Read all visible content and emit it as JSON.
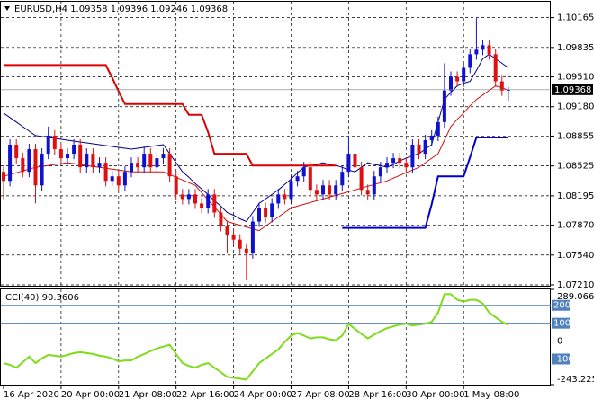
{
  "chart_data": [
    {
      "type": "candlestick",
      "title": "EURUSD,H4  1.09358 1.09396 1.09246 1.09368",
      "categories": [
        "16 Apr 2020",
        null,
        null,
        null,
        null,
        null,
        null,
        null,
        null,
        "20 Apr 00:00",
        null,
        null,
        null,
        null,
        null,
        null,
        null,
        null,
        "21 Apr 08:00",
        null,
        null,
        null,
        null,
        null,
        null,
        null,
        null,
        "22 Apr 16:00",
        null,
        null,
        null,
        null,
        null,
        null,
        null,
        null,
        "24 Apr 00:00",
        null,
        null,
        null,
        null,
        null,
        null,
        null,
        null,
        "27 Apr 08:00",
        null,
        null,
        null,
        null,
        null,
        null,
        null,
        null,
        "28 Apr 16:00",
        null,
        null,
        null,
        null,
        null,
        null,
        null,
        null,
        "30 Apr 00:00",
        null,
        null,
        null,
        null,
        null,
        null,
        null,
        null,
        "1 May 08:00",
        null,
        null,
        null,
        null,
        null,
        null,
        null
      ],
      "open": [
        1.0846,
        1.0836,
        1.0876,
        1.0861,
        1.0846,
        1.0871,
        1.0831,
        1.0866,
        1.0886,
        1.0871,
        1.0861,
        1.0866,
        1.0876,
        1.0851,
        1.0866,
        1.0851,
        1.0856,
        1.0836,
        1.0841,
        1.0831,
        1.0846,
        1.0856,
        1.0851,
        1.0866,
        1.0851,
        1.0861,
        1.0866,
        1.0841,
        1.0821,
        1.0816,
        1.0821,
        1.0811,
        1.0806,
        1.0821,
        1.0801,
        1.0786,
        1.0776,
        1.0771,
        1.0761,
        1.0756,
        1.0791,
        1.0806,
        1.0796,
        1.0811,
        1.0821,
        1.0816,
        1.0836,
        1.0841,
        1.0851,
        1.0826,
        1.0821,
        1.0831,
        1.0821,
        1.0831,
        1.0846,
        1.0866,
        1.0851,
        1.0826,
        1.0821,
        1.0841,
        1.0851,
        1.0856,
        1.0861,
        1.0856,
        1.0851,
        1.0876,
        1.0866,
        1.0881,
        1.0886,
        1.0901,
        1.0936,
        1.0951,
        1.0946,
        1.0961,
        1.0976,
        1.0981,
        1.0986,
        1.0976,
        1.0946,
        1.09358
      ],
      "high": [
        1.0852,
        1.0882,
        1.0882,
        1.0867,
        1.0877,
        1.0877,
        1.0872,
        1.0896,
        1.0892,
        1.0877,
        1.0872,
        1.0882,
        1.0882,
        1.0872,
        1.0872,
        1.0862,
        1.0862,
        1.0847,
        1.0847,
        1.0852,
        1.0862,
        1.0862,
        1.0874,
        1.0872,
        1.0867,
        1.0872,
        1.0872,
        1.0847,
        1.0827,
        1.0827,
        1.0827,
        1.0817,
        1.0827,
        1.0827,
        1.0807,
        1.0792,
        1.0782,
        1.0777,
        1.0767,
        1.0797,
        1.0812,
        1.0812,
        1.0817,
        1.0827,
        1.0827,
        1.0842,
        1.0847,
        1.0857,
        1.0857,
        1.0832,
        1.0837,
        1.0837,
        1.0837,
        1.0852,
        1.0886,
        1.0872,
        1.0857,
        1.0832,
        1.0847,
        1.0857,
        1.0862,
        1.0867,
        1.0867,
        1.0862,
        1.0882,
        1.0882,
        1.0887,
        1.0892,
        1.0907,
        1.0966,
        1.0957,
        1.0957,
        1.0967,
        1.0982,
        1.1016,
        1.0992,
        1.0992,
        1.0982,
        1.0952,
        1.09396
      ],
      "low": [
        1.0816,
        1.083,
        1.0855,
        1.084,
        1.084,
        1.0811,
        1.0825,
        1.086,
        1.0865,
        1.0855,
        1.0855,
        1.086,
        1.0845,
        1.0845,
        1.0845,
        1.0845,
        1.083,
        1.083,
        1.0825,
        1.0825,
        1.084,
        1.0845,
        1.0845,
        1.0845,
        1.0845,
        1.0855,
        1.0835,
        1.0815,
        1.081,
        1.081,
        1.0805,
        1.08,
        1.08,
        1.0795,
        1.078,
        1.0756,
        1.0765,
        1.0755,
        1.0726,
        1.075,
        1.0785,
        1.079,
        1.079,
        1.0805,
        1.081,
        1.081,
        1.083,
        1.0835,
        1.082,
        1.0815,
        1.0815,
        1.0815,
        1.0815,
        1.0825,
        1.084,
        1.0845,
        1.082,
        1.0815,
        1.0815,
        1.0835,
        1.0845,
        1.085,
        1.085,
        1.0845,
        1.0845,
        1.086,
        1.086,
        1.0875,
        1.088,
        1.0895,
        1.093,
        1.094,
        1.094,
        1.0955,
        1.097,
        1.0975,
        1.097,
        1.094,
        1.093,
        1.09246
      ],
      "close": [
        1.0836,
        1.0876,
        1.0861,
        1.0846,
        1.0871,
        1.0831,
        1.0866,
        1.0886,
        1.0871,
        1.0861,
        1.0866,
        1.0876,
        1.0851,
        1.0866,
        1.0851,
        1.0856,
        1.0836,
        1.0841,
        1.0831,
        1.0846,
        1.0856,
        1.0851,
        1.0866,
        1.0851,
        1.0861,
        1.0866,
        1.0841,
        1.0821,
        1.0816,
        1.0821,
        1.0811,
        1.0806,
        1.0821,
        1.0801,
        1.0786,
        1.0776,
        1.0771,
        1.0761,
        1.0756,
        1.0791,
        1.0806,
        1.0796,
        1.0811,
        1.0821,
        1.0816,
        1.0836,
        1.0841,
        1.0851,
        1.0826,
        1.0821,
        1.0831,
        1.0821,
        1.0831,
        1.0846,
        1.0866,
        1.0851,
        1.0826,
        1.0821,
        1.0841,
        1.0851,
        1.0856,
        1.0861,
        1.0856,
        1.0851,
        1.0876,
        1.0866,
        1.0881,
        1.0886,
        1.0901,
        1.0936,
        1.0951,
        1.0946,
        1.0961,
        1.0976,
        1.0981,
        1.0986,
        1.0976,
        1.0946,
        1.09358,
        1.09368
      ],
      "up_color": "#1010d0",
      "down_color": "#e01010",
      "lines": [
        {
          "color": "#000080",
          "width": 1,
          "values": [
            1.0911,
            1.0906,
            1.0901,
            1.0896,
            1.0891,
            1.0886,
            1.0885,
            1.0884,
            1.0883,
            1.0882,
            1.0881,
            1.088,
            1.0879,
            1.0878,
            1.0877,
            1.0876,
            1.0875,
            1.0874,
            1.0873,
            1.0872,
            1.0871,
            1.0872,
            1.0873,
            1.0874,
            1.0875,
            1.0876,
            1.0866,
            1.0856,
            1.0846,
            1.084,
            1.0833,
            1.0827,
            1.0821,
            1.0814,
            1.0808,
            1.0801,
            1.0798,
            1.0794,
            1.0791,
            1.0801,
            1.0811,
            1.0816,
            1.0821,
            1.0826,
            1.0832,
            1.0838,
            1.0845,
            1.0851,
            1.0853,
            1.0854,
            1.0856,
            1.0854,
            1.0853,
            1.0851,
            1.0848,
            1.0846,
            1.0851,
            1.0856,
            1.0854,
            1.0853,
            1.0851,
            1.0854,
            1.0858,
            1.0861,
            1.0864,
            1.0866,
            1.0871,
            1.0876,
            1.0901,
            1.0926,
            1.0934,
            1.0941,
            1.0944,
            1.0946,
            1.0958,
            1.0971,
            1.0976,
            1.0971,
            1.0966,
            1.0961
          ]
        },
        {
          "color": "#d01010",
          "width": 1,
          "values": [
            1.0841,
            1.0843,
            1.0845,
            1.0847,
            1.0849,
            1.0851,
            1.0852,
            1.0853,
            1.0854,
            1.0855,
            1.0856,
            1.0855,
            1.0854,
            1.0853,
            1.0852,
            1.0851,
            1.085,
            1.0849,
            1.0848,
            1.0847,
            1.0846,
            1.0846,
            1.0846,
            1.0846,
            1.0846,
            1.0846,
            1.0843,
            1.084,
            1.0837,
            1.0834,
            1.0831,
            1.0823,
            1.0815,
            1.0807,
            1.0799,
            1.0791,
            1.0789,
            1.0787,
            1.0785,
            1.0783,
            1.0781,
            1.0786,
            1.0791,
            1.0796,
            1.0801,
            1.0806,
            1.0808,
            1.081,
            1.0812,
            1.0814,
            1.0816,
            1.0818,
            1.082,
            1.0822,
            1.0824,
            1.0826,
            1.0828,
            1.083,
            1.0832,
            1.0834,
            1.0836,
            1.0839,
            1.0842,
            1.0845,
            1.0848,
            1.0851,
            1.0856,
            1.0861,
            1.0866,
            1.0881,
            1.0896,
            1.0904,
            1.0911,
            1.0919,
            1.0926,
            1.0931,
            1.0936,
            1.0941,
            1.0939,
            1.0936
          ]
        },
        {
          "color": "#dd0000",
          "width": 2,
          "values": [
            1.0964,
            1.0964,
            1.0964,
            1.0964,
            1.0964,
            1.0964,
            1.0964,
            1.0964,
            1.0964,
            1.0964,
            1.0964,
            1.0964,
            1.0964,
            1.0964,
            1.0964,
            1.0964,
            1.0964,
            1.095,
            1.0935,
            1.0921,
            1.0921,
            1.0921,
            1.0921,
            1.0921,
            1.0921,
            1.0921,
            1.0921,
            1.0921,
            1.0921,
            1.0909,
            1.0909,
            1.0909,
            1.089,
            1.0866,
            1.0866,
            1.0866,
            1.0866,
            1.0866,
            1.0866,
            1.0853,
            1.0853,
            1.0853,
            1.0853,
            1.0853,
            1.0853,
            1.0853,
            1.0853,
            1.0853,
            1.0853,
            1.0853,
            1.0853,
            1.0853,
            1.0853,
            null,
            null,
            null,
            null,
            null,
            null,
            null,
            null,
            null,
            null,
            null,
            null,
            null,
            null,
            null,
            null,
            null,
            null,
            null,
            null,
            null,
            null,
            null,
            null,
            null,
            null,
            null
          ]
        },
        {
          "color": "#0000cc",
          "width": 2,
          "values": [
            null,
            null,
            null,
            null,
            null,
            null,
            null,
            null,
            null,
            null,
            null,
            null,
            null,
            null,
            null,
            null,
            null,
            null,
            null,
            null,
            null,
            null,
            null,
            null,
            null,
            null,
            null,
            null,
            null,
            null,
            null,
            null,
            null,
            null,
            null,
            null,
            null,
            null,
            null,
            null,
            null,
            null,
            null,
            null,
            null,
            null,
            null,
            null,
            null,
            null,
            null,
            null,
            null,
            1.0784,
            1.0784,
            1.0784,
            1.0784,
            1.0784,
            1.0784,
            1.0784,
            1.0784,
            1.0784,
            1.0784,
            1.0784,
            1.0784,
            1.0784,
            1.0784,
            1.081,
            1.0841,
            1.0841,
            1.0841,
            1.0841,
            1.0841,
            1.0862,
            1.0884,
            1.0884,
            1.0884,
            1.0884,
            1.0884,
            1.0884
          ]
        }
      ],
      "price_tag": 1.09368,
      "ylim": [
        1.072,
        1.1034
      ],
      "yticks": [
        1.10165,
        1.09835,
        {
          "value": 1.0951,
          "label": "1.09510"
        },
        {
          "value": 1.0918,
          "label": "1.09180"
        },
        1.08855,
        1.08525,
        1.08195,
        {
          "value": 1.0787,
          "label": "1.07870"
        },
        {
          "value": 1.0754,
          "label": "1.07540"
        },
        {
          "value": 1.0721,
          "label": "1.07210"
        }
      ],
      "grid": true
    },
    {
      "type": "line",
      "title": "CCI(40) 90.3606",
      "color": "#7fdc1a",
      "values": [
        -123,
        -133,
        -149,
        -118,
        -87,
        -123,
        -97,
        -77,
        -82,
        -87,
        -77,
        -67,
        -62,
        -67,
        -72,
        -82,
        -87,
        -97,
        -113,
        -108,
        -108,
        -87,
        -72,
        -56,
        -41,
        -31,
        -21,
        -72,
        -123,
        -139,
        -149,
        -133,
        -123,
        -149,
        -174,
        -200,
        -205,
        -210,
        -215,
        -169,
        -123,
        -97,
        -72,
        -46,
        -5,
        31,
        46,
        31,
        15,
        21,
        21,
        10,
        5,
        31,
        97,
        67,
        41,
        15,
        36,
        56,
        72,
        82,
        92,
        97,
        87,
        92,
        97,
        108,
        159,
        262,
        262,
        231,
        221,
        231,
        231,
        210,
        159,
        133,
        108,
        90.3606
      ],
      "ylim": [
        -243.2253,
        289.0661
      ],
      "yticks": [
        289.0661,
        0,
        -243.2253
      ],
      "levels": [
        200,
        100,
        -100
      ],
      "level_color": "#4f81bd"
    }
  ]
}
